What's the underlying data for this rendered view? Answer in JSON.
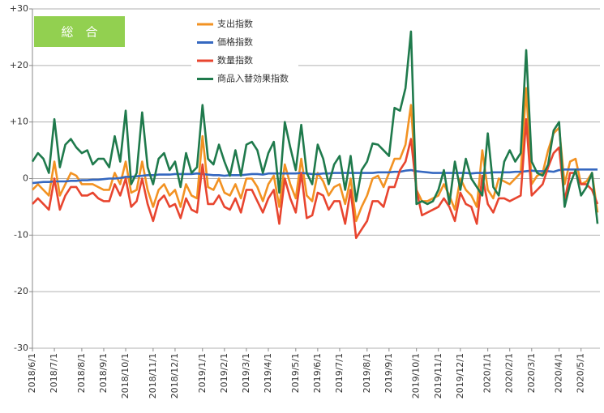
{
  "chart_data": {
    "type": "line",
    "badge": "総　合",
    "categories": [
      "2018/6/1",
      null,
      null,
      null,
      "2018/7/1",
      null,
      null,
      null,
      null,
      "2018/8/1",
      null,
      null,
      null,
      "2018/9/1",
      null,
      null,
      null,
      "2018/10/1",
      null,
      null,
      null,
      null,
      "2018/11/1",
      null,
      null,
      null,
      "2018/12/1",
      null,
      null,
      null,
      null,
      "2019/1/1",
      null,
      null,
      null,
      "2019/2/1",
      null,
      null,
      null,
      "2019/3/1",
      null,
      null,
      null,
      "2019/4/1",
      null,
      null,
      null,
      null,
      "2019/5/1",
      null,
      null,
      null,
      "2019/6/1",
      null,
      null,
      null,
      "2019/7/1",
      null,
      null,
      null,
      null,
      "2019/8/1",
      null,
      null,
      null,
      "2019/9/1",
      null,
      null,
      null,
      null,
      "2019/10/1",
      null,
      null,
      null,
      "2019/11/1",
      null,
      null,
      null,
      "2019/12/1",
      null,
      null,
      null,
      null,
      "2020/1/1",
      null,
      null,
      null,
      "2020/2/1",
      null,
      null,
      null,
      "2020/3/1",
      null,
      null,
      null,
      null,
      "2020/4/1",
      null,
      null,
      null,
      "2020/5/1",
      null,
      null,
      null
    ],
    "series": [
      {
        "name": "支出指数",
        "color": "#f29222",
        "values": [
          -2,
          -1,
          -2,
          -3,
          3,
          -3,
          -1,
          1,
          0.5,
          -1,
          -1,
          -1,
          -1.5,
          -2,
          -2,
          1,
          -1,
          3,
          -2.5,
          -2,
          3,
          -2,
          -5,
          -2,
          -1,
          -3,
          -2,
          -5,
          -1,
          -3,
          -3.5,
          7.5,
          -1.5,
          -2,
          0,
          -2.5,
          -3,
          -1,
          -3.5,
          0,
          0,
          -1.5,
          -4,
          -1,
          0.5,
          -5,
          2.5,
          -1,
          -3.5,
          3.5,
          -3,
          -4,
          1,
          -0.5,
          -3,
          -1.5,
          -1,
          -4.5,
          0,
          -7.5,
          -5,
          -3,
          0,
          0.5,
          -1.5,
          1,
          3.5,
          3.5,
          6,
          13,
          -2,
          -4,
          -4,
          -3.5,
          -3,
          -1,
          -3,
          -5.5,
          0,
          -2,
          -3,
          -5,
          5,
          -2,
          -3.5,
          0,
          -0.5,
          -1,
          0,
          1,
          16,
          -1,
          0.5,
          1,
          5,
          8,
          9,
          -1,
          3,
          3.5,
          -1,
          -0.5,
          1,
          -6
        ]
      },
      {
        "name": "価格指数",
        "color": "#3568c0",
        "values": [
          -0.8,
          -0.7,
          -0.6,
          -0.6,
          -0.5,
          -0.5,
          -0.5,
          -0.4,
          -0.4,
          -0.3,
          -0.3,
          -0.2,
          -0.2,
          -0.1,
          0,
          0,
          0.1,
          0.3,
          0.3,
          0.4,
          0.5,
          0.6,
          0.6,
          0.7,
          0.7,
          0.7,
          0.8,
          0.8,
          0.8,
          0.8,
          0.9,
          0.8,
          0.7,
          0.6,
          0.6,
          0.5,
          0.6,
          0.6,
          0.6,
          0.7,
          0.8,
          0.8,
          0.7,
          0.9,
          0.9,
          0.9,
          0.9,
          0.9,
          0.9,
          1.0,
          0.9,
          0.8,
          0.8,
          0.9,
          0.9,
          1.0,
          1.0,
          1.0,
          1.0,
          1.0,
          1.0,
          1.0,
          1.0,
          1.1,
          1.1,
          1.1,
          1.2,
          1.2,
          1.4,
          1.5,
          1.3,
          1.2,
          1.1,
          1.0,
          1.0,
          1.0,
          1.0,
          1.0,
          1.0,
          1.0,
          0.9,
          1.0,
          1.0,
          1.0,
          1.1,
          1.1,
          1.1,
          1.1,
          1.2,
          1.2,
          1.3,
          1.4,
          1.3,
          1.3,
          1.3,
          1.2,
          1.5,
          1.6,
          1.6,
          1.6,
          1.6,
          1.6,
          1.6,
          1.6
        ]
      },
      {
        "name": "数量指数",
        "color": "#e8452f",
        "values": [
          -4.5,
          -3.5,
          -4.5,
          -5.5,
          0,
          -5.5,
          -3,
          -1.5,
          -1.5,
          -3,
          -3,
          -2.5,
          -3.5,
          -4,
          -4,
          -1,
          -3,
          0,
          -5,
          -4,
          0,
          -4.5,
          -7.5,
          -4,
          -3,
          -5,
          -4.5,
          -7,
          -3.5,
          -5.5,
          -6,
          2.5,
          -4.5,
          -4.5,
          -3,
          -5,
          -5.5,
          -3.5,
          -6,
          -2,
          -2,
          -4,
          -6,
          -3.5,
          -2,
          -8,
          0,
          -3.5,
          -6,
          1,
          -7,
          -6.5,
          -2.5,
          -3,
          -5.5,
          -4,
          -4,
          -8,
          -2,
          -10.5,
          -9,
          -7.5,
          -4,
          -4,
          -5,
          -1.5,
          -1.5,
          1.5,
          3,
          7,
          -2,
          -6.5,
          -6,
          -5.5,
          -5,
          -3.5,
          -5,
          -7.5,
          -2.5,
          -4.5,
          -5,
          -8,
          0.5,
          -4.5,
          -6,
          -3.5,
          -3.5,
          -4,
          -3.5,
          -3,
          10.5,
          -3,
          -2,
          -1,
          2,
          4.5,
          5.5,
          -4,
          1,
          1,
          -1,
          -1,
          -2,
          -4.5
        ]
      },
      {
        "name": "商品入替効果指数",
        "color": "#1f7a4c",
        "values": [
          3,
          4.5,
          3.5,
          1,
          10.5,
          2,
          6,
          7,
          5.5,
          4.5,
          5,
          2.5,
          3.5,
          3.5,
          2,
          7.5,
          3,
          12,
          -1,
          1,
          11.7,
          2,
          -1,
          3.5,
          4.5,
          1.5,
          3,
          -1.5,
          4.5,
          1,
          2,
          13,
          3.5,
          2.5,
          6,
          3,
          0.5,
          5,
          0.5,
          6,
          6.5,
          5,
          1,
          4.5,
          6.5,
          -2.5,
          10,
          5.5,
          1.5,
          9.5,
          1,
          -1,
          6,
          3.5,
          -1,
          2.5,
          4,
          -2,
          4,
          -4,
          1.5,
          3,
          6.2,
          6,
          5,
          4,
          12.5,
          12,
          16,
          26,
          -4.5,
          -4,
          -4.5,
          -4,
          -2,
          1.5,
          -4.5,
          3,
          -2,
          3.5,
          0,
          -1.5,
          -3,
          8,
          -1.5,
          -3,
          3,
          5,
          3,
          4.5,
          22.7,
          3,
          1,
          0.5,
          2.5,
          8.5,
          10,
          -5,
          -1,
          1.5,
          -3,
          -1.5,
          1,
          -8
        ]
      }
    ],
    "ylim": [
      -30,
      30
    ],
    "yticks": [
      {
        "value": 30,
        "label": "+30"
      },
      {
        "value": 20,
        "label": "+20"
      },
      {
        "value": 10,
        "label": "+10"
      },
      0,
      -10,
      -20,
      -30
    ],
    "grid": true
  }
}
